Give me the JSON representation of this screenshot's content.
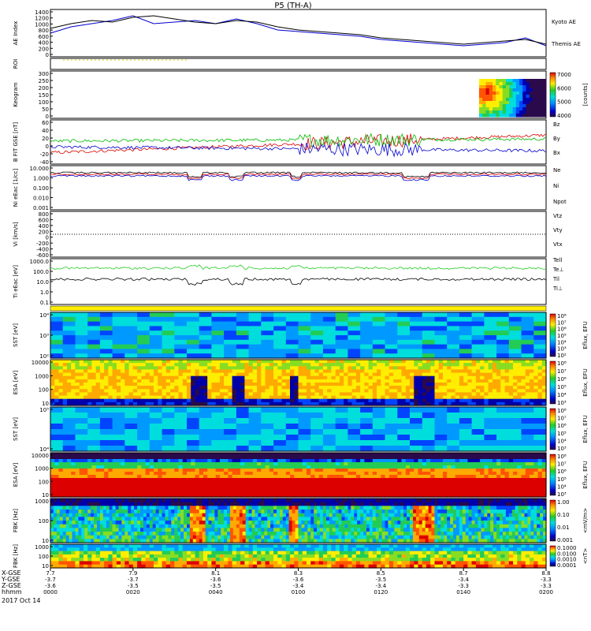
{
  "title": "P5 (TH-A)",
  "chart_data": {
    "type": "multi-panel time series / spectrogram",
    "date_label": "2017 Oct 14",
    "x_range_hhmm": [
      "0000",
      "0200"
    ],
    "tick_labels": [
      {
        "hhmm": "0000",
        "x": "7.7",
        "y": "-3.7",
        "z": "-3.6"
      },
      {
        "hhmm": "0020",
        "x": "7.9",
        "y": "-3.7",
        "z": "-3.5"
      },
      {
        "hhmm": "0040",
        "x": "8.1",
        "y": "-3.6",
        "z": "-3.5"
      },
      {
        "hhmm": "0100",
        "x": "8.3",
        "y": "-3.6",
        "z": "-3.4"
      },
      {
        "hhmm": "0120",
        "x": "8.5",
        "y": "-3.5",
        "z": "-3.4"
      },
      {
        "hhmm": "0140",
        "x": "8.7",
        "y": "-3.4",
        "z": "-3.3"
      },
      {
        "hhmm": "0200",
        "x": "8.8",
        "y": "-3.3",
        "z": "-3.3"
      }
    ],
    "row_labels": [
      "X-GSE",
      "Y-GSE",
      "Z-GSE",
      "hhmm"
    ],
    "panels": [
      {
        "id": "ae",
        "ylabel": "AE Index",
        "yticks": [
          "1400",
          "1200",
          "1000",
          "800",
          "600",
          "400",
          "200",
          "0"
        ],
        "ylim": [
          0,
          1400
        ],
        "series": [
          {
            "name": "Kyoto AE",
            "color": "#0000cc",
            "x": [
              0,
              5,
              10,
              15,
              20,
              25,
              30,
              35,
              40,
              45,
              50,
              55,
              60,
              65,
              70,
              75,
              80,
              85,
              90,
              95,
              100,
              105,
              110,
              115,
              120
            ],
            "y": [
              700,
              900,
              1000,
              1100,
              1250,
              1000,
              1050,
              1100,
              1000,
              1150,
              1000,
              800,
              750,
              700,
              650,
              600,
              500,
              450,
              400,
              350,
              300,
              350,
              400,
              550,
              300
            ]
          },
          {
            "name": "Themis AE",
            "color": "#000000",
            "x": [
              0,
              5,
              10,
              15,
              20,
              25,
              30,
              35,
              40,
              45,
              50,
              55,
              60,
              65,
              70,
              75,
              80,
              85,
              90,
              95,
              100,
              105,
              110,
              115,
              120
            ],
            "y": [
              850,
              1000,
              1100,
              1050,
              1200,
              1250,
              1150,
              1050,
              1000,
              1100,
              1050,
              900,
              800,
              750,
              700,
              650,
              550,
              500,
              450,
              400,
              350,
              400,
              450,
              500,
              350
            ]
          }
        ]
      },
      {
        "id": "roi",
        "ylabel": "ROI"
      },
      {
        "id": "keogram",
        "ylabel": "Keogram",
        "yticks": [
          "300",
          "250",
          "200",
          "150",
          "100",
          "50",
          "0"
        ],
        "colorbar": {
          "label": "[counts]",
          "ticks": [
            "7000",
            "6000",
            "5000",
            "4000"
          ]
        }
      },
      {
        "id": "bfield",
        "ylabel": "B FIT GSE [nT]",
        "yticks": [
          "60",
          "40",
          "20",
          "0",
          "-20",
          "-40"
        ],
        "ylim": [
          -45,
          60
        ],
        "series": [
          {
            "name": "Bz",
            "color": "#dd0000"
          },
          {
            "name": "By",
            "color": "#00bb00"
          },
          {
            "name": "Bx",
            "color": "#0000cc"
          }
        ]
      },
      {
        "id": "density",
        "ylabel": "Ni eEac [1/cc]",
        "yticks": [
          "10.000",
          "1.000",
          "0.100",
          "0.010",
          "0.001"
        ],
        "series": [
          {
            "name": "Ne",
            "color": "#dd0000"
          },
          {
            "name": "Ni",
            "color": "#000000"
          },
          {
            "name": "Npot",
            "color": "#0000cc"
          }
        ]
      },
      {
        "id": "velocity",
        "ylabel": "Vi [km/s]",
        "yticks": [
          "800",
          "600",
          "400",
          "200",
          "0",
          "-200",
          "-400",
          "-600"
        ],
        "series": [
          {
            "name": "Vtz",
            "color": "#dd0000"
          },
          {
            "name": "Vty",
            "color": "#00bb00"
          },
          {
            "name": "Vtx",
            "color": "#0000cc"
          }
        ]
      },
      {
        "id": "temp",
        "ylabel": "Ti eEac [eV]",
        "yticks": [
          "1000.0",
          "100.0",
          "10.0",
          "1.0",
          "0.1"
        ],
        "series": [
          {
            "name": "Tell",
            "color": "#000000"
          },
          {
            "name": "Te⊥",
            "color": "#dd0000"
          },
          {
            "name": "Til",
            "color": "#00bb00"
          },
          {
            "name": "Ti⊥",
            "color": "#0000cc"
          }
        ]
      },
      {
        "id": "sst_ion",
        "ylabel": "SST [eV]",
        "yticks": [
          "10⁴",
          "10³",
          "10²"
        ],
        "colorbar": {
          "label": "Eflux, EFU",
          "ticks": [
            "10⁸",
            "10⁷",
            "10⁶",
            "10⁵",
            "10⁴",
            "10³",
            "10²"
          ]
        }
      },
      {
        "id": "esa_ion",
        "ylabel": "ESA [eV]",
        "yticks": [
          "10000",
          "1000",
          "100",
          "10"
        ],
        "colorbar": {
          "label": "Eflux, EFU",
          "ticks": [
            "10⁸",
            "10⁷",
            "10⁶",
            "10⁵",
            "10⁴",
            "10³"
          ]
        }
      },
      {
        "id": "sst_elec",
        "ylabel": "SST [eV]",
        "yticks": [
          "10⁵",
          "10⁴"
        ],
        "colorbar": {
          "label": "Eflux, EFU",
          "ticks": [
            "10⁸",
            "10⁷",
            "10⁶",
            "10⁵",
            "10⁴",
            "10³"
          ]
        }
      },
      {
        "id": "esa_elec",
        "ylabel": "ESA [eV]",
        "yticks": [
          "10000",
          "1000",
          "100",
          "10"
        ],
        "colorbar": {
          "label": "Eflux, EFU",
          "ticks": [
            "10⁸",
            "10⁷",
            "10⁶",
            "10⁵",
            "10⁴",
            "10³"
          ]
        }
      },
      {
        "id": "fbk_e",
        "ylabel": "FBK [Hz]",
        "yticks": [
          "1000",
          "100",
          "10"
        ],
        "colorbar": {
          "label": "<mV/m>",
          "ticks": [
            "1.00",
            "0.10",
            "0.01",
            "0.001"
          ]
        }
      },
      {
        "id": "fbk_b",
        "ylabel": "FBK [Hz]",
        "yticks": [
          "1000",
          "100",
          "10"
        ],
        "colorbar": {
          "label": "<nT>",
          "ticks": [
            "0.1000",
            "0.0100",
            "0.0010",
            "0.0001"
          ]
        }
      }
    ]
  }
}
